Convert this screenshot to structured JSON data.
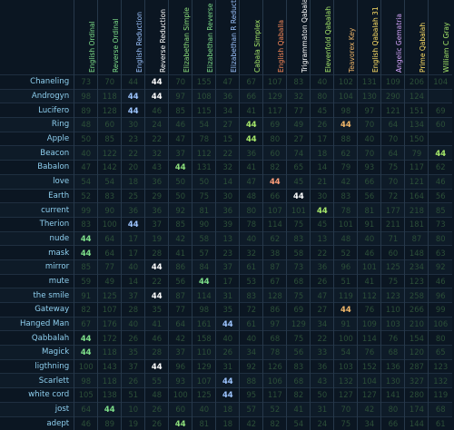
{
  "colors": {
    "background": "#0b1622",
    "word": "#8fd0f0",
    "dim_value": "#2c4f38",
    "match_green": "#a6e86a",
    "match_blue": "#9cc4ff",
    "match_orange": "#f2b86a",
    "match_pink": "#ff9e7a",
    "match_white": "#ffffff"
  },
  "ciphers": [
    {
      "name": "English Ordinal",
      "color": "#7ee08a"
    },
    {
      "name": "Reverse Ordinal",
      "color": "#7ee08a"
    },
    {
      "name": "English Reduction",
      "color": "#9cc4ff"
    },
    {
      "name": "Reverse Reduction",
      "color": "#ffffff"
    },
    {
      "name": "Elizabethan Simple",
      "color": "#8ee07c"
    },
    {
      "name": "Elizabethan Reverse",
      "color": "#7ee08a"
    },
    {
      "name": "Elizabethan R Reducti",
      "color": "#9cc4ff"
    },
    {
      "name": "Cabala Simplex",
      "color": "#a6e86a"
    },
    {
      "name": "English Qaballa",
      "color": "#ff8c5a"
    },
    {
      "name": "Trigrammaton Qabala",
      "color": "#ffffff"
    },
    {
      "name": "Elevenfold Qabalah",
      "color": "#a6e86a"
    },
    {
      "name": "Teavorex Key",
      "color": "#f2b86a"
    },
    {
      "name": "English Qabalah 31",
      "color": "#ffe066"
    },
    {
      "name": "Angelic Gematria",
      "color": "#d7a6ff"
    },
    {
      "name": "Prime Qabalah",
      "color": "#ffe066"
    },
    {
      "name": "William C Gray",
      "color": "#a6e86a"
    }
  ],
  "rows": [
    {
      "word": "Chaneling",
      "values": [
        "73",
        "70",
        "44",
        "44",
        "70",
        "155",
        "47",
        "67",
        "107",
        "83",
        "40",
        "102",
        "131",
        "109",
        "206",
        "104"
      ],
      "hits": [
        {
          "col": 3,
          "color": "#ffffff"
        }
      ]
    },
    {
      "word": "Androgyn",
      "values": [
        "98",
        "118",
        "44",
        "44",
        "97",
        "108",
        "36",
        "66",
        "129",
        "32",
        "80",
        "104",
        "130",
        "290",
        "124",
        ""
      ],
      "hits": [
        {
          "col": 2,
          "color": "#9cc4ff"
        },
        {
          "col": 3,
          "color": "#ffffff"
        }
      ]
    },
    {
      "word": "Lucifero",
      "values": [
        "89",
        "128",
        "44",
        "46",
        "85",
        "115",
        "34",
        "41",
        "117",
        "77",
        "45",
        "98",
        "97",
        "121",
        "151",
        "69"
      ],
      "hits": [
        {
          "col": 2,
          "color": "#9cc4ff"
        }
      ]
    },
    {
      "word": "Ring",
      "values": [
        "48",
        "60",
        "30",
        "24",
        "46",
        "54",
        "27",
        "44",
        "69",
        "49",
        "26",
        "44",
        "70",
        "64",
        "134",
        "60"
      ],
      "hits": [
        {
          "col": 7,
          "color": "#a6e86a"
        },
        {
          "col": 11,
          "color": "#f2b86a"
        }
      ]
    },
    {
      "word": "Apple",
      "values": [
        "50",
        "85",
        "23",
        "22",
        "47",
        "78",
        "15",
        "44",
        "80",
        "27",
        "17",
        "88",
        "40",
        "70",
        "150",
        ""
      ],
      "hits": [
        {
          "col": 7,
          "color": "#a6e86a"
        }
      ]
    },
    {
      "word": "Beacon",
      "values": [
        "40",
        "122",
        "22",
        "32",
        "37",
        "112",
        "22",
        "36",
        "60",
        "74",
        "18",
        "62",
        "70",
        "64",
        "79",
        "44"
      ],
      "hits": [
        {
          "col": 15,
          "color": "#a6e86a"
        }
      ]
    },
    {
      "word": "Babalon",
      "values": [
        "47",
        "142",
        "20",
        "43",
        "44",
        "131",
        "32",
        "41",
        "82",
        "65",
        "14",
        "79",
        "93",
        "75",
        "117",
        "62"
      ],
      "hits": [
        {
          "col": 4,
          "color": "#8ee07c"
        }
      ]
    },
    {
      "word": "love",
      "values": [
        "54",
        "54",
        "18",
        "36",
        "50",
        "50",
        "14",
        "47",
        "44",
        "45",
        "21",
        "42",
        "66",
        "70",
        "121",
        "46"
      ],
      "hits": [
        {
          "col": 8,
          "color": "#ff9e7a"
        }
      ]
    },
    {
      "word": "Earth",
      "values": [
        "52",
        "83",
        "25",
        "29",
        "50",
        "75",
        "30",
        "48",
        "66",
        "44",
        "30",
        "83",
        "56",
        "72",
        "164",
        "56"
      ],
      "hits": [
        {
          "col": 9,
          "color": "#ffffff"
        }
      ]
    },
    {
      "word": "current",
      "values": [
        "99",
        "90",
        "36",
        "36",
        "92",
        "81",
        "36",
        "80",
        "107",
        "101",
        "44",
        "78",
        "81",
        "177",
        "218",
        "85"
      ],
      "hits": [
        {
          "col": 10,
          "color": "#a6e86a"
        }
      ]
    },
    {
      "word": "Therion",
      "values": [
        "83",
        "100",
        "44",
        "37",
        "85",
        "90",
        "39",
        "78",
        "114",
        "75",
        "45",
        "101",
        "91",
        "211",
        "181",
        "73"
      ],
      "hits": [
        {
          "col": 2,
          "color": "#9cc4ff"
        }
      ]
    },
    {
      "word": "nude",
      "values": [
        "44",
        "64",
        "17",
        "19",
        "42",
        "58",
        "13",
        "40",
        "62",
        "83",
        "13",
        "48",
        "40",
        "71",
        "87",
        "80"
      ],
      "hits": [
        {
          "col": 0,
          "color": "#7ee08a"
        }
      ]
    },
    {
      "word": "mask",
      "values": [
        "44",
        "64",
        "17",
        "28",
        "41",
        "57",
        "23",
        "32",
        "38",
        "58",
        "22",
        "52",
        "46",
        "60",
        "148",
        "63"
      ],
      "hits": [
        {
          "col": 0,
          "color": "#7ee08a"
        }
      ]
    },
    {
      "word": "mirror",
      "values": [
        "85",
        "77",
        "40",
        "44",
        "86",
        "84",
        "37",
        "61",
        "87",
        "73",
        "36",
        "96",
        "101",
        "125",
        "234",
        "92"
      ],
      "hits": [
        {
          "col": 3,
          "color": "#ffffff"
        }
      ]
    },
    {
      "word": "mute",
      "values": [
        "59",
        "49",
        "14",
        "22",
        "56",
        "44",
        "17",
        "53",
        "67",
        "68",
        "26",
        "51",
        "41",
        "75",
        "123",
        "46"
      ],
      "hits": [
        {
          "col": 5,
          "color": "#7ee08a"
        }
      ]
    },
    {
      "word": "the smile",
      "values": [
        "91",
        "125",
        "37",
        "44",
        "87",
        "114",
        "31",
        "83",
        "128",
        "75",
        "47",
        "119",
        "112",
        "123",
        "258",
        "96"
      ],
      "hits": [
        {
          "col": 3,
          "color": "#ffffff"
        }
      ]
    },
    {
      "word": "Gateway",
      "values": [
        "82",
        "107",
        "28",
        "35",
        "77",
        "98",
        "35",
        "72",
        "86",
        "69",
        "27",
        "44",
        "76",
        "110",
        "266",
        "99"
      ],
      "hits": [
        {
          "col": 11,
          "color": "#f2b86a"
        }
      ]
    },
    {
      "word": "Hanged Man",
      "values": [
        "67",
        "176",
        "40",
        "41",
        "64",
        "161",
        "44",
        "61",
        "97",
        "129",
        "34",
        "91",
        "109",
        "103",
        "210",
        "106"
      ],
      "hits": [
        {
          "col": 6,
          "color": "#9cc4ff"
        }
      ]
    },
    {
      "word": "Qabbalah",
      "values": [
        "44",
        "172",
        "26",
        "46",
        "42",
        "158",
        "40",
        "40",
        "68",
        "75",
        "22",
        "100",
        "114",
        "76",
        "154",
        "80"
      ],
      "hits": [
        {
          "col": 0,
          "color": "#7ee08a"
        }
      ]
    },
    {
      "word": "Magick",
      "values": [
        "44",
        "118",
        "35",
        "28",
        "37",
        "110",
        "26",
        "34",
        "78",
        "56",
        "33",
        "54",
        "76",
        "68",
        "120",
        "65"
      ],
      "hits": [
        {
          "col": 0,
          "color": "#7ee08a"
        }
      ]
    },
    {
      "word": "ligthning",
      "values": [
        "100",
        "143",
        "37",
        "44",
        "96",
        "129",
        "31",
        "92",
        "126",
        "83",
        "36",
        "103",
        "152",
        "136",
        "287",
        "123"
      ],
      "hits": [
        {
          "col": 3,
          "color": "#ffffff"
        }
      ]
    },
    {
      "word": "Scarlett",
      "values": [
        "98",
        "118",
        "26",
        "55",
        "93",
        "107",
        "44",
        "88",
        "106",
        "68",
        "43",
        "132",
        "104",
        "130",
        "327",
        "132"
      ],
      "hits": [
        {
          "col": 6,
          "color": "#9cc4ff"
        }
      ]
    },
    {
      "word": "white cord",
      "values": [
        "105",
        "138",
        "51",
        "48",
        "100",
        "125",
        "44",
        "95",
        "117",
        "82",
        "50",
        "127",
        "127",
        "141",
        "280",
        "119"
      ],
      "hits": [
        {
          "col": 6,
          "color": "#9cc4ff"
        }
      ]
    },
    {
      "word": "jost",
      "values": [
        "64",
        "44",
        "10",
        "26",
        "60",
        "40",
        "18",
        "57",
        "52",
        "41",
        "31",
        "70",
        "42",
        "80",
        "174",
        "68"
      ],
      "hits": [
        {
          "col": 1,
          "color": "#7ee08a"
        }
      ]
    },
    {
      "word": "adept",
      "values": [
        "46",
        "89",
        "19",
        "26",
        "44",
        "81",
        "18",
        "42",
        "82",
        "54",
        "24",
        "75",
        "34",
        "66",
        "144",
        "61"
      ],
      "hits": [
        {
          "col": 4,
          "color": "#8ee07c"
        }
      ]
    }
  ]
}
